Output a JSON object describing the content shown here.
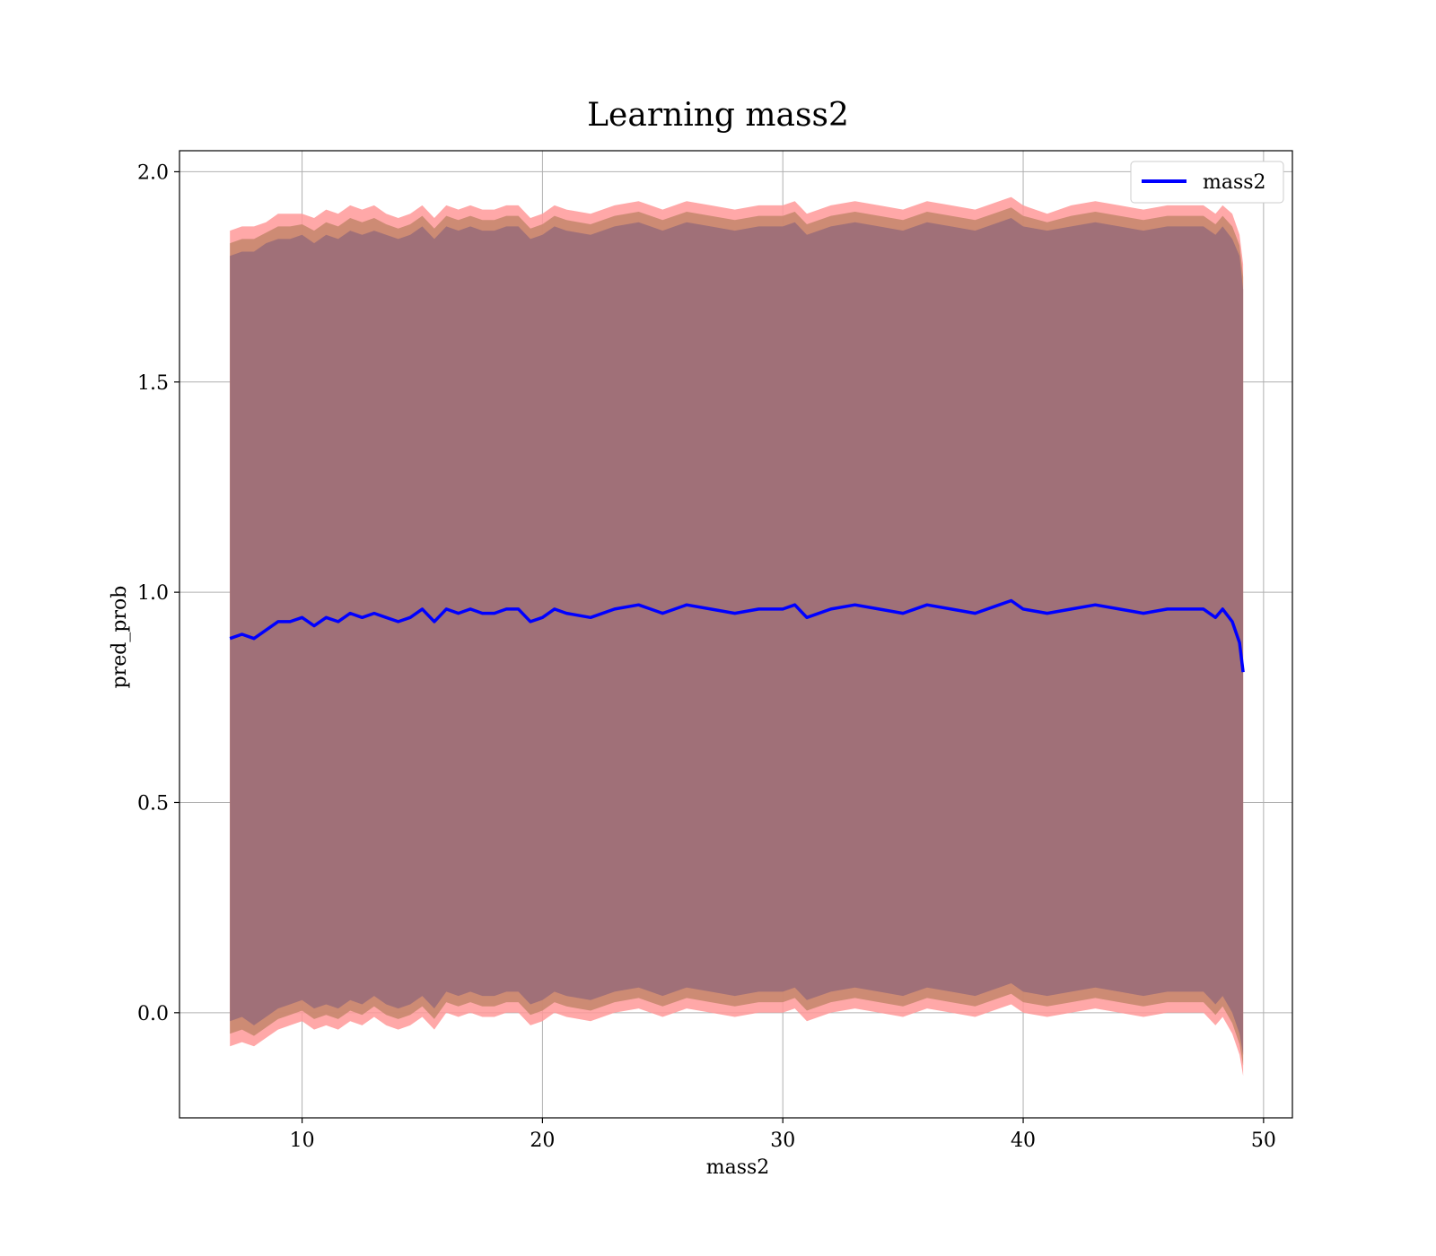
{
  "chart_data": {
    "type": "line",
    "title": "Learning mass2",
    "xlabel": "mass2",
    "ylabel": "pred_prob",
    "xlim": [
      4.9,
      51.2
    ],
    "ylim": [
      -0.25,
      2.05
    ],
    "x_ticks": [
      10,
      20,
      30,
      40,
      50
    ],
    "x_tick_labels": [
      "10",
      "20",
      "30",
      "40",
      "50"
    ],
    "y_ticks": [
      0.0,
      0.5,
      1.0,
      1.5,
      2.0
    ],
    "y_tick_labels": [
      "0.0",
      "0.5",
      "1.0",
      "1.5",
      "2.0"
    ],
    "grid": true,
    "legend_position": "top-right",
    "series": [
      {
        "name": "mass2",
        "color": "#0000ff",
        "x": [
          7.0,
          7.5,
          8.0,
          8.5,
          9.0,
          9.5,
          10.0,
          10.5,
          11.0,
          11.5,
          12.0,
          12.5,
          13.0,
          13.5,
          14.0,
          14.5,
          15.0,
          15.5,
          16.0,
          16.5,
          17.0,
          17.5,
          18.0,
          18.5,
          19.0,
          19.5,
          20.0,
          20.5,
          21.0,
          22.0,
          23.0,
          24.0,
          24.5,
          25.0,
          26.0,
          27.0,
          28.0,
          29.0,
          30.0,
          30.5,
          31.0,
          32.0,
          33.0,
          34.0,
          35.0,
          36.0,
          37.0,
          38.0,
          39.0,
          39.5,
          40.0,
          41.0,
          42.0,
          43.0,
          44.0,
          45.0,
          46.0,
          47.0,
          47.5,
          48.0,
          48.3,
          48.7,
          49.0,
          49.15
        ],
        "y": [
          0.89,
          0.9,
          0.89,
          0.91,
          0.93,
          0.93,
          0.94,
          0.92,
          0.94,
          0.93,
          0.95,
          0.94,
          0.95,
          0.94,
          0.93,
          0.94,
          0.96,
          0.93,
          0.96,
          0.95,
          0.96,
          0.95,
          0.95,
          0.96,
          0.96,
          0.93,
          0.94,
          0.96,
          0.95,
          0.94,
          0.96,
          0.97,
          0.96,
          0.95,
          0.97,
          0.96,
          0.95,
          0.96,
          0.96,
          0.97,
          0.94,
          0.96,
          0.97,
          0.96,
          0.95,
          0.97,
          0.96,
          0.95,
          0.97,
          0.98,
          0.96,
          0.95,
          0.96,
          0.97,
          0.96,
          0.95,
          0.96,
          0.96,
          0.96,
          0.94,
          0.96,
          0.93,
          0.88,
          0.81
        ],
        "band_outer_upper": [
          1.86,
          1.87,
          1.87,
          1.88,
          1.9,
          1.9,
          1.9,
          1.89,
          1.91,
          1.9,
          1.92,
          1.91,
          1.92,
          1.9,
          1.89,
          1.9,
          1.92,
          1.89,
          1.92,
          1.91,
          1.92,
          1.91,
          1.91,
          1.92,
          1.92,
          1.89,
          1.9,
          1.92,
          1.91,
          1.9,
          1.92,
          1.93,
          1.92,
          1.91,
          1.93,
          1.92,
          1.91,
          1.92,
          1.92,
          1.93,
          1.9,
          1.92,
          1.93,
          1.92,
          1.91,
          1.93,
          1.92,
          1.91,
          1.93,
          1.94,
          1.92,
          1.9,
          1.92,
          1.93,
          1.92,
          1.91,
          1.92,
          1.92,
          1.92,
          1.9,
          1.92,
          1.9,
          1.85,
          1.78
        ],
        "band_inner_upper": [
          1.8,
          1.81,
          1.81,
          1.83,
          1.84,
          1.84,
          1.85,
          1.83,
          1.85,
          1.84,
          1.86,
          1.85,
          1.86,
          1.85,
          1.84,
          1.85,
          1.87,
          1.84,
          1.87,
          1.86,
          1.87,
          1.86,
          1.86,
          1.87,
          1.87,
          1.84,
          1.85,
          1.87,
          1.86,
          1.85,
          1.87,
          1.88,
          1.87,
          1.86,
          1.88,
          1.87,
          1.86,
          1.87,
          1.87,
          1.88,
          1.85,
          1.87,
          1.88,
          1.87,
          1.86,
          1.88,
          1.87,
          1.86,
          1.88,
          1.89,
          1.87,
          1.86,
          1.87,
          1.88,
          1.87,
          1.86,
          1.87,
          1.87,
          1.87,
          1.85,
          1.87,
          1.84,
          1.8,
          1.72
        ],
        "band_inner_lower": [
          -0.02,
          -0.01,
          -0.03,
          -0.01,
          0.01,
          0.02,
          0.03,
          0.01,
          0.02,
          0.01,
          0.03,
          0.02,
          0.04,
          0.02,
          0.01,
          0.02,
          0.04,
          0.01,
          0.05,
          0.04,
          0.05,
          0.04,
          0.04,
          0.05,
          0.05,
          0.02,
          0.03,
          0.05,
          0.04,
          0.03,
          0.05,
          0.06,
          0.05,
          0.04,
          0.06,
          0.05,
          0.04,
          0.05,
          0.05,
          0.06,
          0.03,
          0.05,
          0.06,
          0.05,
          0.04,
          0.06,
          0.05,
          0.04,
          0.06,
          0.07,
          0.05,
          0.04,
          0.05,
          0.06,
          0.05,
          0.04,
          0.05,
          0.05,
          0.05,
          0.02,
          0.04,
          0.0,
          -0.05,
          -0.1
        ],
        "band_outer_lower": [
          -0.08,
          -0.07,
          -0.08,
          -0.06,
          -0.04,
          -0.03,
          -0.02,
          -0.04,
          -0.03,
          -0.04,
          -0.02,
          -0.03,
          -0.01,
          -0.03,
          -0.04,
          -0.03,
          -0.01,
          -0.04,
          0.0,
          -0.01,
          0.0,
          -0.01,
          -0.01,
          0.0,
          0.0,
          -0.03,
          -0.02,
          0.0,
          -0.01,
          -0.02,
          0.0,
          0.01,
          0.0,
          -0.01,
          0.01,
          0.0,
          -0.01,
          0.0,
          0.0,
          0.01,
          -0.02,
          0.0,
          0.01,
          0.0,
          -0.01,
          0.01,
          0.0,
          -0.01,
          0.01,
          0.02,
          0.0,
          -0.01,
          0.0,
          0.01,
          0.0,
          -0.01,
          0.0,
          0.0,
          0.0,
          -0.03,
          -0.01,
          -0.05,
          -0.1,
          -0.15
        ]
      }
    ],
    "band_outer_color": "#ff9999",
    "band_middle_color": "#c8876e",
    "band_inner_color": "#a07078"
  }
}
